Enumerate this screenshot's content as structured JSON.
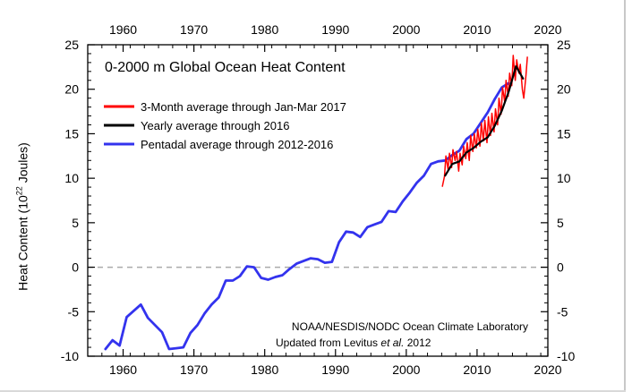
{
  "chart_data": {
    "type": "line",
    "title": "0-2000 m Global Ocean Heat Content",
    "ylabel_prefix": "Heat Content (10",
    "ylabel_exp": "22",
    "ylabel_suffix": " Joules)",
    "xlabel": "",
    "xlim": [
      1955,
      2020
    ],
    "ylim": [
      -10,
      25
    ],
    "x_ticks": [
      1960,
      1970,
      1980,
      1990,
      2000,
      2010,
      2020
    ],
    "y_ticks": [
      -10,
      -5,
      0,
      5,
      10,
      15,
      20,
      25
    ],
    "x_minor_step": 2,
    "y_minor_step": 1,
    "zero_line": {
      "y": 0,
      "style": "dashed",
      "color": "#aaaaaa"
    },
    "legend_position": "top-left",
    "series": [
      {
        "name": "3-Month average through Jan-Mar 2017",
        "color": "#ff0000",
        "x": [
          2005.1,
          2005.4,
          2005.6,
          2005.9,
          2006.1,
          2006.4,
          2006.6,
          2006.9,
          2007.1,
          2007.4,
          2007.6,
          2007.9,
          2008.1,
          2008.4,
          2008.6,
          2008.9,
          2009.1,
          2009.4,
          2009.6,
          2009.9,
          2010.1,
          2010.4,
          2010.6,
          2010.9,
          2011.1,
          2011.4,
          2011.6,
          2011.9,
          2012.1,
          2012.4,
          2012.6,
          2012.9,
          2013.1,
          2013.4,
          2013.6,
          2013.9,
          2014.1,
          2014.4,
          2014.6,
          2014.9,
          2015.1,
          2015.4,
          2015.6,
          2015.9,
          2016.1,
          2016.4,
          2016.6,
          2016.9,
          2017.1
        ],
        "y": [
          9.1,
          10.2,
          12.5,
          11.0,
          12.8,
          11.2,
          13.2,
          12.0,
          13.0,
          10.8,
          12.8,
          11.5,
          13.6,
          12.2,
          14.0,
          12.0,
          14.8,
          13.0,
          15.0,
          13.4,
          15.5,
          13.6,
          16.2,
          14.2,
          16.5,
          14.0,
          16.9,
          14.8,
          17.3,
          15.2,
          17.8,
          16.0,
          19.0,
          17.2,
          20.2,
          18.6,
          21.0,
          19.2,
          21.8,
          20.4,
          23.8,
          21.0,
          23.3,
          21.8,
          22.8,
          20.0,
          19.0,
          21.5,
          23.6
        ]
      },
      {
        "name": "Yearly average through 2016",
        "color": "#000000",
        "x": [
          2005.5,
          2006.5,
          2007.5,
          2008.5,
          2009.5,
          2010.5,
          2011.5,
          2012.5,
          2013.5,
          2014.5,
          2015.5,
          2016.5
        ],
        "y": [
          10.3,
          11.6,
          11.9,
          12.9,
          13.4,
          14.1,
          14.6,
          15.9,
          17.6,
          19.8,
          22.6,
          21.2
        ]
      },
      {
        "name": "Pentadal average through 2012-2016",
        "color": "#3333ee",
        "x": [
          1957.5,
          1958.5,
          1959.5,
          1960.5,
          1961.5,
          1962.5,
          1963.5,
          1964.5,
          1965.5,
          1966.5,
          1967.5,
          1968.5,
          1969.5,
          1970.5,
          1971.5,
          1972.5,
          1973.5,
          1974.5,
          1975.5,
          1976.5,
          1977.5,
          1978.5,
          1979.5,
          1980.5,
          1981.5,
          1982.5,
          1983.5,
          1984.5,
          1985.5,
          1986.5,
          1987.5,
          1988.5,
          1989.5,
          1990.5,
          1991.5,
          1992.5,
          1993.5,
          1994.5,
          1995.5,
          1996.5,
          1997.5,
          1998.5,
          1999.5,
          2000.5,
          2001.5,
          2002.5,
          2003.5,
          2004.5,
          2005.5,
          2006.5,
          2007.5,
          2008.5,
          2009.5,
          2010.5,
          2011.5,
          2012.5,
          2013.5,
          2014.5
        ],
        "y": [
          -9.2,
          -8.2,
          -8.8,
          -5.6,
          -4.9,
          -4.2,
          -5.7,
          -6.5,
          -7.3,
          -9.2,
          -9.1,
          -9.0,
          -7.4,
          -6.5,
          -5.2,
          -4.2,
          -3.4,
          -1.5,
          -1.5,
          -1.0,
          0.1,
          0.0,
          -1.2,
          -1.4,
          -1.1,
          -0.9,
          -0.2,
          0.4,
          0.7,
          1.0,
          0.9,
          0.5,
          0.6,
          2.8,
          4.0,
          3.9,
          3.4,
          4.5,
          4.8,
          5.1,
          6.3,
          6.2,
          7.4,
          8.4,
          9.5,
          10.3,
          11.6,
          11.9,
          12.0,
          12.6,
          13.1,
          14.4,
          15.0,
          16.2,
          17.4,
          18.9,
          20.2,
          20.7
        ]
      }
    ],
    "annotation": {
      "line1": "NOAA/NESDIS/NODC Ocean Climate Laboratory",
      "line2_prefix": "Updated from Levitus ",
      "line2_italic": "et al.",
      "line2_suffix": " 2012"
    }
  }
}
